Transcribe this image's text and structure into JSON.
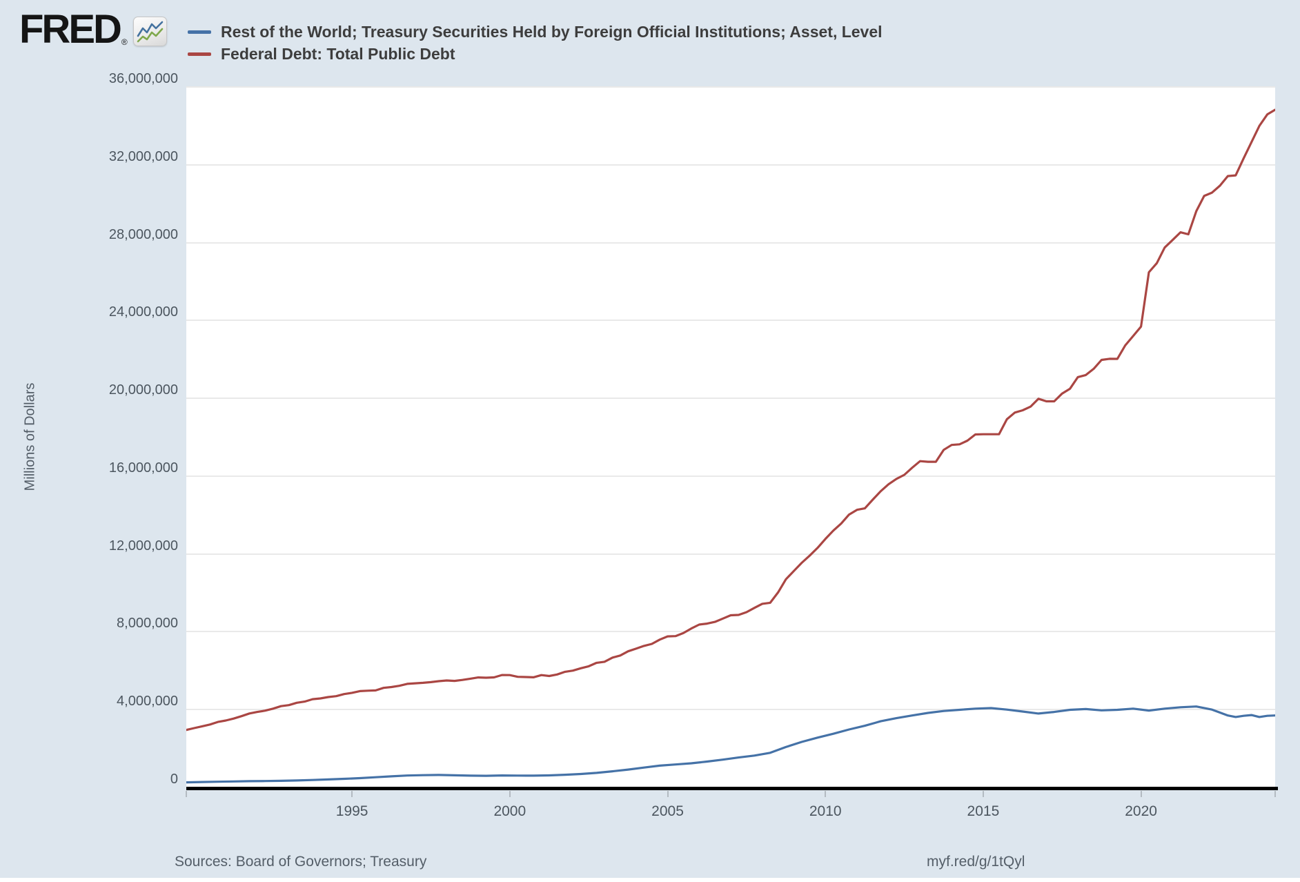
{
  "branding": {
    "logo_text": "FRED",
    "registered_mark": "®",
    "logo_icon": "line-chart-icon"
  },
  "legend": {
    "items": [
      {
        "label": "Rest of the World; Treasury Securities Held by Foreign Official Institutions; Asset, Level",
        "color": "#4572a7"
      },
      {
        "label": "Federal Debt: Total Public Debt",
        "color": "#aa4643"
      }
    ]
  },
  "y_axis": {
    "title": "Millions of Dollars",
    "tick_labels": [
      "0",
      "4,000,000",
      "8,000,000",
      "12,000,000",
      "16,000,000",
      "20,000,000",
      "24,000,000",
      "28,000,000",
      "32,000,000",
      "36,000,000"
    ],
    "tick_values": [
      0,
      4000000,
      8000000,
      12000000,
      16000000,
      20000000,
      24000000,
      28000000,
      32000000,
      36000000
    ]
  },
  "x_axis": {
    "tick_labels": [
      "1995",
      "2000",
      "2005",
      "2010",
      "2015",
      "2020"
    ],
    "tick_values": [
      1995,
      2000,
      2005,
      2010,
      2015,
      2020
    ]
  },
  "footer": {
    "sources": "Sources: Board of Governors; Treasury",
    "link": "myf.red/g/1tQyl"
  },
  "colors": {
    "background": "#dde6ee",
    "plot_background": "#ffffff",
    "gridline": "#e9e9e9",
    "axis_line": "#000000",
    "blue_series": "#4572a7",
    "red_series": "#aa4643",
    "legend_text": "#3d3d3d",
    "axis_text": "#4c565f",
    "footer_text": "#545e68"
  },
  "chart_data": {
    "type": "line",
    "title": "",
    "xlabel": "",
    "ylabel": "Millions of Dollars",
    "x_domain": [
      1989.75,
      2024.25
    ],
    "ylim": [
      0,
      36000000
    ],
    "grid": true,
    "legend_position": "top",
    "series": [
      {
        "name": "Rest of the World; Treasury Securities Held by Foreign Official Institutions; Asset, Level",
        "color": "#4572a7",
        "units": "Millions of Dollars",
        "points": [
          [
            1989.75,
            263000
          ],
          [
            1990.25,
            280000
          ],
          [
            1990.75,
            295000
          ],
          [
            1991.25,
            308000
          ],
          [
            1991.75,
            322000
          ],
          [
            1992.25,
            330000
          ],
          [
            1992.75,
            342000
          ],
          [
            1993.25,
            358000
          ],
          [
            1993.75,
            382000
          ],
          [
            1994.25,
            410000
          ],
          [
            1994.75,
            442000
          ],
          [
            1995.25,
            480000
          ],
          [
            1995.75,
            525000
          ],
          [
            1996.25,
            570000
          ],
          [
            1996.75,
            615000
          ],
          [
            1997.25,
            630000
          ],
          [
            1997.75,
            641000
          ],
          [
            1998.25,
            625000
          ],
          [
            1998.75,
            605000
          ],
          [
            1999.25,
            600000
          ],
          [
            1999.75,
            617000
          ],
          [
            2000.25,
            611000
          ],
          [
            2000.75,
            605000
          ],
          [
            2001.25,
            622000
          ],
          [
            2001.75,
            652000
          ],
          [
            2002.25,
            690000
          ],
          [
            2002.75,
            750000
          ],
          [
            2003.25,
            830000
          ],
          [
            2003.75,
            920000
          ],
          [
            2004.25,
            1020000
          ],
          [
            2004.75,
            1120000
          ],
          [
            2005.25,
            1180000
          ],
          [
            2005.75,
            1240000
          ],
          [
            2006.25,
            1330000
          ],
          [
            2006.75,
            1430000
          ],
          [
            2007.25,
            1540000
          ],
          [
            2007.75,
            1640000
          ],
          [
            2008.25,
            1780000
          ],
          [
            2008.75,
            2080000
          ],
          [
            2009.25,
            2340000
          ],
          [
            2009.75,
            2560000
          ],
          [
            2010.25,
            2760000
          ],
          [
            2010.75,
            2980000
          ],
          [
            2011.25,
            3170000
          ],
          [
            2011.75,
            3400000
          ],
          [
            2012.25,
            3560000
          ],
          [
            2012.75,
            3700000
          ],
          [
            2013.25,
            3830000
          ],
          [
            2013.75,
            3930000
          ],
          [
            2014.25,
            3990000
          ],
          [
            2014.75,
            4050000
          ],
          [
            2015.25,
            4080000
          ],
          [
            2015.75,
            4000000
          ],
          [
            2016.25,
            3900000
          ],
          [
            2016.75,
            3800000
          ],
          [
            2017.25,
            3880000
          ],
          [
            2017.75,
            3990000
          ],
          [
            2018.25,
            4030000
          ],
          [
            2018.75,
            3960000
          ],
          [
            2019.25,
            3990000
          ],
          [
            2019.75,
            4050000
          ],
          [
            2020.25,
            3950000
          ],
          [
            2020.75,
            4050000
          ],
          [
            2021.25,
            4120000
          ],
          [
            2021.75,
            4160000
          ],
          [
            2022.25,
            4000000
          ],
          [
            2022.5,
            3850000
          ],
          [
            2022.75,
            3700000
          ],
          [
            2023.0,
            3620000
          ],
          [
            2023.25,
            3680000
          ],
          [
            2023.5,
            3720000
          ],
          [
            2023.75,
            3620000
          ],
          [
            2024.0,
            3680000
          ],
          [
            2024.25,
            3700000
          ]
        ]
      },
      {
        "name": "Federal Debt: Total Public Debt",
        "color": "#aa4643",
        "units": "Millions of Dollars",
        "points": [
          [
            1989.75,
            2953000
          ],
          [
            1990.0,
            3052000
          ],
          [
            1990.25,
            3143000
          ],
          [
            1990.5,
            3233000
          ],
          [
            1990.75,
            3365000
          ],
          [
            1991.0,
            3441000
          ],
          [
            1991.25,
            3538000
          ],
          [
            1991.5,
            3665000
          ],
          [
            1991.75,
            3802000
          ],
          [
            1992.0,
            3881000
          ],
          [
            1992.25,
            3947000
          ],
          [
            1992.5,
            4051000
          ],
          [
            1992.75,
            4177000
          ],
          [
            1993.0,
            4230000
          ],
          [
            1993.25,
            4352000
          ],
          [
            1993.5,
            4411000
          ],
          [
            1993.75,
            4536000
          ],
          [
            1994.0,
            4576000
          ],
          [
            1994.25,
            4646000
          ],
          [
            1994.5,
            4693000
          ],
          [
            1994.75,
            4800000
          ],
          [
            1995.0,
            4864000
          ],
          [
            1995.25,
            4951000
          ],
          [
            1995.5,
            4974000
          ],
          [
            1995.75,
            4988000
          ],
          [
            1996.0,
            5118000
          ],
          [
            1996.25,
            5161000
          ],
          [
            1996.5,
            5225000
          ],
          [
            1996.75,
            5323000
          ],
          [
            1997.0,
            5353000
          ],
          [
            1997.25,
            5376000
          ],
          [
            1997.5,
            5413000
          ],
          [
            1997.75,
            5463000
          ],
          [
            1998.0,
            5499000
          ],
          [
            1998.25,
            5478000
          ],
          [
            1998.5,
            5526000
          ],
          [
            1998.75,
            5590000
          ],
          [
            1999.0,
            5652000
          ],
          [
            1999.25,
            5639000
          ],
          [
            1999.5,
            5656000
          ],
          [
            1999.75,
            5776000
          ],
          [
            2000.0,
            5773000
          ],
          [
            2000.25,
            5686000
          ],
          [
            2000.5,
            5674000
          ],
          [
            2000.75,
            5662000
          ],
          [
            2001.0,
            5774000
          ],
          [
            2001.25,
            5727000
          ],
          [
            2001.5,
            5807000
          ],
          [
            2001.75,
            5943000
          ],
          [
            2002.0,
            6006000
          ],
          [
            2002.25,
            6126000
          ],
          [
            2002.5,
            6228000
          ],
          [
            2002.75,
            6405000
          ],
          [
            2003.0,
            6460000
          ],
          [
            2003.25,
            6670000
          ],
          [
            2003.5,
            6783000
          ],
          [
            2003.75,
            6998000
          ],
          [
            2004.0,
            7131000
          ],
          [
            2004.25,
            7274000
          ],
          [
            2004.5,
            7379000
          ],
          [
            2004.75,
            7596000
          ],
          [
            2005.0,
            7765000
          ],
          [
            2005.25,
            7777000
          ],
          [
            2005.5,
            7933000
          ],
          [
            2005.75,
            8170000
          ],
          [
            2006.0,
            8371000
          ],
          [
            2006.25,
            8420000
          ],
          [
            2006.5,
            8507000
          ],
          [
            2006.75,
            8680000
          ],
          [
            2007.0,
            8849000
          ],
          [
            2007.25,
            8868000
          ],
          [
            2007.5,
            9008000
          ],
          [
            2007.75,
            9229000
          ],
          [
            2008.0,
            9438000
          ],
          [
            2008.25,
            9492000
          ],
          [
            2008.5,
            10025000
          ],
          [
            2008.75,
            10700000
          ],
          [
            2009.0,
            11127000
          ],
          [
            2009.25,
            11545000
          ],
          [
            2009.5,
            11910000
          ],
          [
            2009.75,
            12311000
          ],
          [
            2010.0,
            12773000
          ],
          [
            2010.25,
            13202000
          ],
          [
            2010.5,
            13562000
          ],
          [
            2010.75,
            14025000
          ],
          [
            2011.0,
            14270000
          ],
          [
            2011.25,
            14343000
          ],
          [
            2011.5,
            14790000
          ],
          [
            2011.75,
            15223000
          ],
          [
            2012.0,
            15582000
          ],
          [
            2012.25,
            15856000
          ],
          [
            2012.5,
            16066000
          ],
          [
            2012.75,
            16433000
          ],
          [
            2013.0,
            16771000
          ],
          [
            2013.25,
            16738000
          ],
          [
            2013.5,
            16739000
          ],
          [
            2013.75,
            17352000
          ],
          [
            2014.0,
            17601000
          ],
          [
            2014.25,
            17633000
          ],
          [
            2014.5,
            17824000
          ],
          [
            2014.75,
            18141000
          ],
          [
            2015.0,
            18152000
          ],
          [
            2015.25,
            18152000
          ],
          [
            2015.5,
            18151000
          ],
          [
            2015.75,
            18922000
          ],
          [
            2016.0,
            19265000
          ],
          [
            2016.25,
            19382000
          ],
          [
            2016.5,
            19573000
          ],
          [
            2016.75,
            19977000
          ],
          [
            2017.0,
            19846000
          ],
          [
            2017.25,
            19845000
          ],
          [
            2017.5,
            20245000
          ],
          [
            2017.75,
            20493000
          ],
          [
            2018.0,
            21090000
          ],
          [
            2018.25,
            21195000
          ],
          [
            2018.5,
            21516000
          ],
          [
            2018.75,
            21974000
          ],
          [
            2019.0,
            22028000
          ],
          [
            2019.25,
            22024000
          ],
          [
            2019.5,
            22719000
          ],
          [
            2019.75,
            23201000
          ],
          [
            2020.0,
            23687000
          ],
          [
            2020.25,
            26477000
          ],
          [
            2020.5,
            26945000
          ],
          [
            2020.75,
            27748000
          ],
          [
            2021.0,
            28133000
          ],
          [
            2021.25,
            28529000
          ],
          [
            2021.5,
            28429000
          ],
          [
            2021.75,
            29617000
          ],
          [
            2022.0,
            30401000
          ],
          [
            2022.25,
            30569000
          ],
          [
            2022.5,
            30929000
          ],
          [
            2022.75,
            31420000
          ],
          [
            2023.0,
            31458000
          ],
          [
            2023.25,
            32332000
          ],
          [
            2023.5,
            33167000
          ],
          [
            2023.75,
            34001000
          ],
          [
            2024.0,
            34587000
          ],
          [
            2024.25,
            34831000
          ]
        ]
      }
    ]
  }
}
